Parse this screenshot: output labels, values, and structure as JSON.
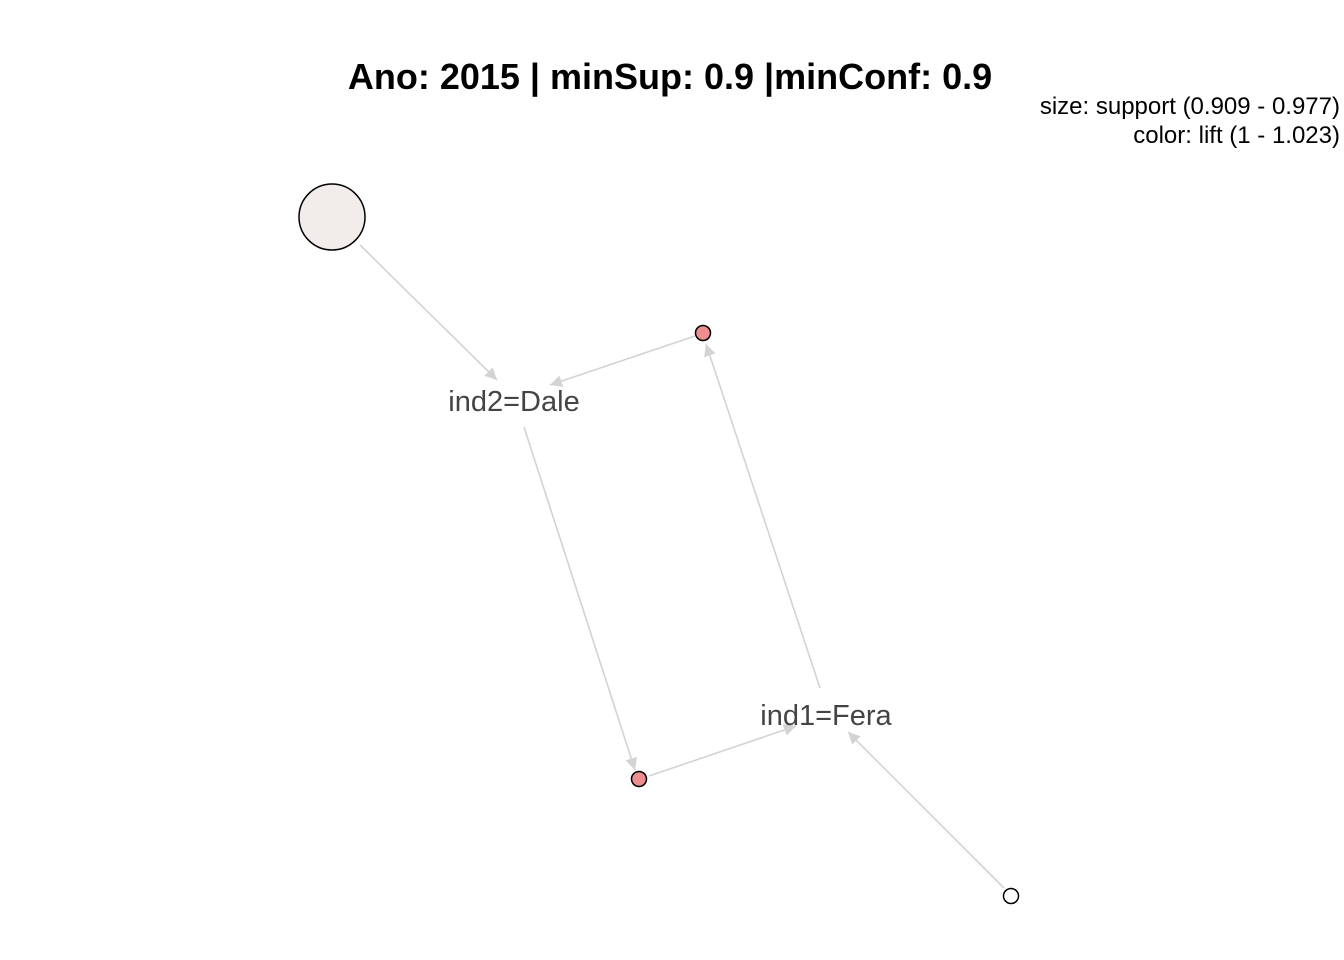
{
  "title": "Ano: 2015 | minSup: 0.9 |minConf: 0.9",
  "legend": {
    "size": "size: support (0.909 - 0.977)",
    "color": "color: lift (1 - 1.023)"
  },
  "colors": {
    "edge": "#d3d3d3",
    "node_stroke": "#000000",
    "label": "#444444",
    "rule_light": "#f2ecea",
    "rule_red": "#ec8d8f",
    "rule_white": "#ffffff"
  },
  "items": [
    {
      "id": "dale",
      "label": "ind2=Dale"
    },
    {
      "id": "fera",
      "label": "ind1=Fera"
    }
  ],
  "rules": [
    {
      "id": "rule-1",
      "support": 0.977,
      "lift": 1.0,
      "color": "#f2ecea"
    },
    {
      "id": "rule-2",
      "support": 0.909,
      "lift": 1.023,
      "color": "#ec8d8f"
    },
    {
      "id": "rule-3",
      "support": 0.909,
      "lift": 1.023,
      "color": "#ec8d8f"
    },
    {
      "id": "rule-4",
      "support": 0.909,
      "lift": 1.0,
      "color": "#ffffff"
    }
  ],
  "edges": [
    {
      "from": "rule-1",
      "to": "dale"
    },
    {
      "from": "rule-2",
      "to": "dale"
    },
    {
      "from": "dale",
      "to": "rule-3"
    },
    {
      "from": "rule-3",
      "to": "fera"
    },
    {
      "from": "fera",
      "to": "rule-2"
    },
    {
      "from": "rule-4",
      "to": "fera"
    }
  ]
}
